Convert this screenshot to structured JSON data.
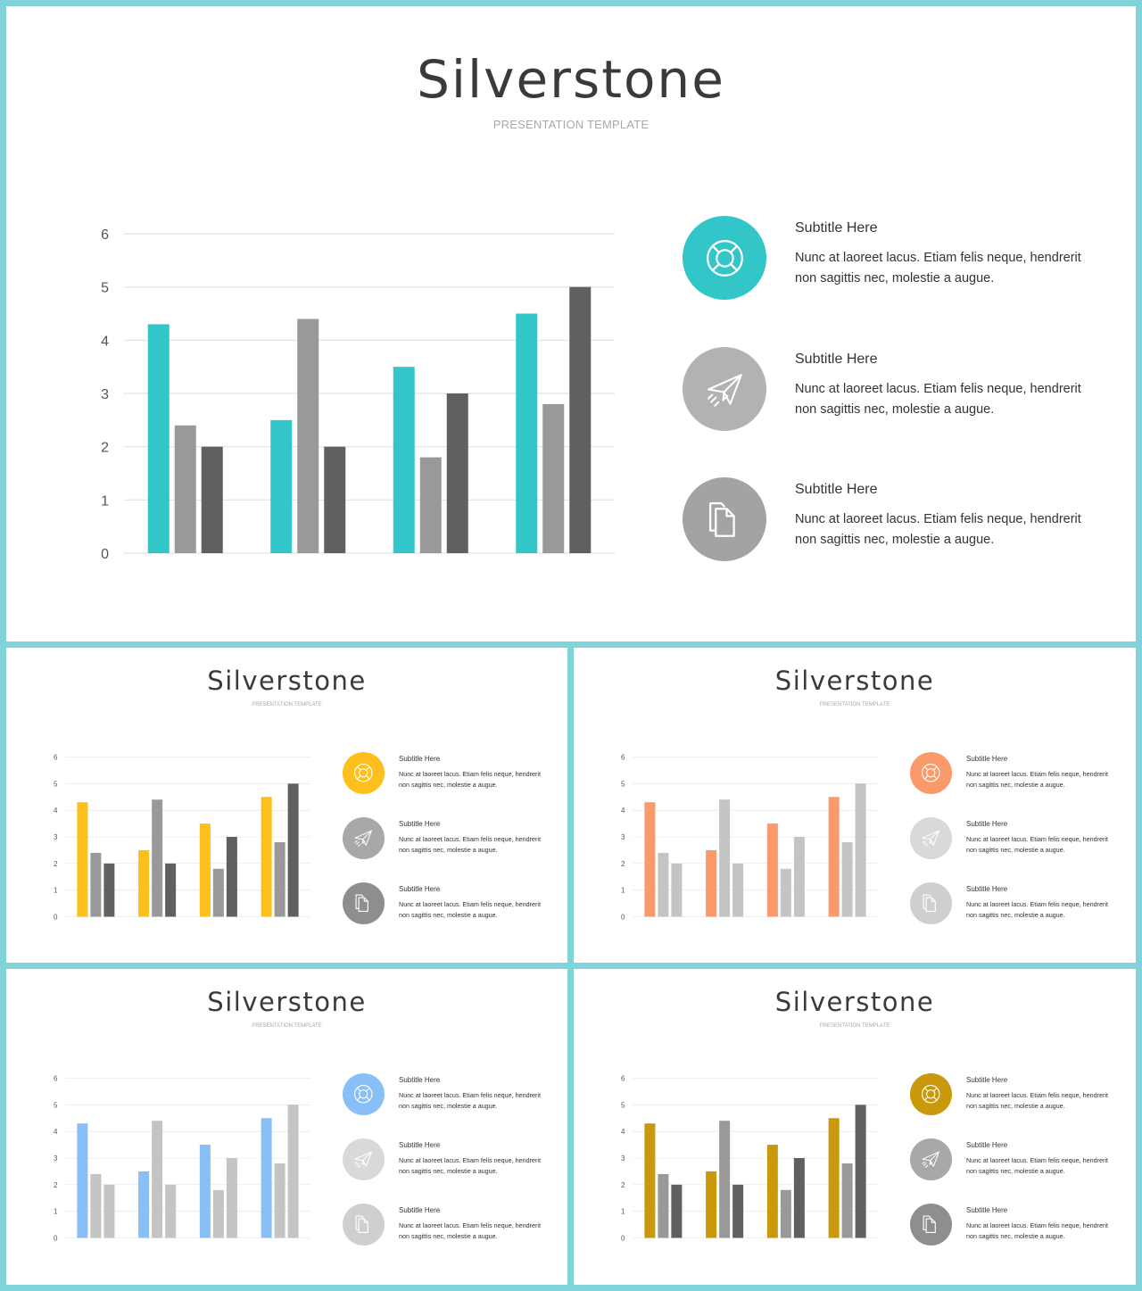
{
  "slides": [
    {
      "title": "Silverstone",
      "subtitle": "PRESENTATION TEMPLATE",
      "palette": {
        "s1": "#33c6c9",
        "s2": "#999999",
        "s3": "#606060",
        "c1": "#33c6c9",
        "c2": "#b2b2b2",
        "c3": "#a3a3a3"
      },
      "features": [
        {
          "icon": "lifebuoy-icon",
          "title": "Subtitle  Here",
          "text": "Nunc at laoreet lacus. Etiam felis neque, hendrerit non sagittis nec, molestie a augue."
        },
        {
          "icon": "paper-plane-icon",
          "title": "Subtitle  Here",
          "text": "Nunc at laoreet lacus. Etiam felis neque, hendrerit non sagittis nec, molestie a augue."
        },
        {
          "icon": "documents-icon",
          "title": "Subtitle  Here",
          "text": "Nunc at laoreet lacus. Etiam felis neque, hendrerit non sagittis nec, molestie a augue."
        }
      ]
    },
    {
      "title": "Silverstone",
      "subtitle": "PRESENTATION TEMPLATE",
      "palette": {
        "s1": "#fdbf1b",
        "s2": "#999999",
        "s3": "#606060",
        "c1": "#fdbf1b",
        "c2": "#a8a8a8",
        "c3": "#8e8e8e"
      },
      "features": [
        {
          "icon": "lifebuoy-icon",
          "title": "Subtitle  Here",
          "text": "Nunc at laoreet lacus. Etiam felis neque, hendrerit non sagittis nec, molestie a augue."
        },
        {
          "icon": "paper-plane-icon",
          "title": "Subtitle  Here",
          "text": "Nunc at laoreet lacus. Etiam felis neque, hendrerit non sagittis nec, molestie a augue."
        },
        {
          "icon": "documents-icon",
          "title": "Subtitle  Here",
          "text": "Nunc at laoreet lacus. Etiam felis neque, hendrerit non sagittis nec, molestie a augue."
        }
      ]
    },
    {
      "title": "Silverstone",
      "subtitle": "PRESENTATION TEMPLATE",
      "palette": {
        "s1": "#fa9a6a",
        "s2": "#c4c4c4",
        "s3": "#c4c4c4",
        "c1": "#fa9a6a",
        "c2": "#d9d9d9",
        "c3": "#cfcfcf"
      },
      "features": [
        {
          "icon": "lifebuoy-icon",
          "title": "Subtitle  Here",
          "text": "Nunc at laoreet lacus. Etiam felis neque, hendrerit non sagittis nec, molestie a augue."
        },
        {
          "icon": "paper-plane-icon",
          "title": "Subtitle  Here",
          "text": "Nunc at laoreet lacus. Etiam felis neque, hendrerit non sagittis nec, molestie a augue."
        },
        {
          "icon": "documents-icon",
          "title": "Subtitle  Here",
          "text": "Nunc at laoreet lacus. Etiam felis neque, hendrerit non sagittis nec, molestie a augue."
        }
      ]
    },
    {
      "title": "Silverstone",
      "subtitle": "PRESENTATION TEMPLATE",
      "palette": {
        "s1": "#88bff6",
        "s2": "#c4c4c4",
        "s3": "#c4c4c4",
        "c1": "#88bff6",
        "c2": "#d9d9d9",
        "c3": "#cfcfcf"
      },
      "features": [
        {
          "icon": "lifebuoy-icon",
          "title": "Subtitle  Here",
          "text": "Nunc at laoreet lacus. Etiam felis neque, hendrerit non sagittis nec, molestie a augue."
        },
        {
          "icon": "paper-plane-icon",
          "title": "Subtitle  Here",
          "text": "Nunc at laoreet lacus. Etiam felis neque, hendrerit non sagittis nec, molestie a augue."
        },
        {
          "icon": "documents-icon",
          "title": "Subtitle  Here",
          "text": "Nunc at laoreet lacus. Etiam felis neque, hendrerit non sagittis nec, molestie a augue."
        }
      ]
    },
    {
      "title": "Silverstone",
      "subtitle": "PRESENTATION TEMPLATE",
      "palette": {
        "s1": "#c9990b",
        "s2": "#999999",
        "s3": "#606060",
        "c1": "#c9990b",
        "c2": "#a8a8a8",
        "c3": "#8e8e8e"
      },
      "features": [
        {
          "icon": "lifebuoy-icon",
          "title": "Subtitle  Here",
          "text": "Nunc at laoreet lacus. Etiam felis neque, hendrerit non sagittis nec, molestie a augue."
        },
        {
          "icon": "paper-plane-icon",
          "title": "Subtitle  Here",
          "text": "Nunc at laoreet lacus. Etiam felis neque, hendrerit non sagittis nec, molestie a augue."
        },
        {
          "icon": "documents-icon",
          "title": "Subtitle  Here",
          "text": "Nunc at laoreet lacus. Etiam felis neque, hendrerit non sagittis nec, molestie a augue."
        }
      ]
    }
  ],
  "chart_data": {
    "type": "bar",
    "categories": [
      "",
      "",
      "",
      ""
    ],
    "series": [
      {
        "values": [
          4.3,
          2.5,
          3.5,
          4.5
        ]
      },
      {
        "values": [
          2.4,
          4.4,
          1.8,
          2.8
        ]
      },
      {
        "values": [
          2.0,
          2.0,
          3.0,
          5.0
        ]
      }
    ],
    "yticks": [
      "0",
      "1",
      "2",
      "3",
      "4",
      "5",
      "6"
    ],
    "ylim": [
      0,
      6
    ],
    "grid": true,
    "legend": "none"
  }
}
